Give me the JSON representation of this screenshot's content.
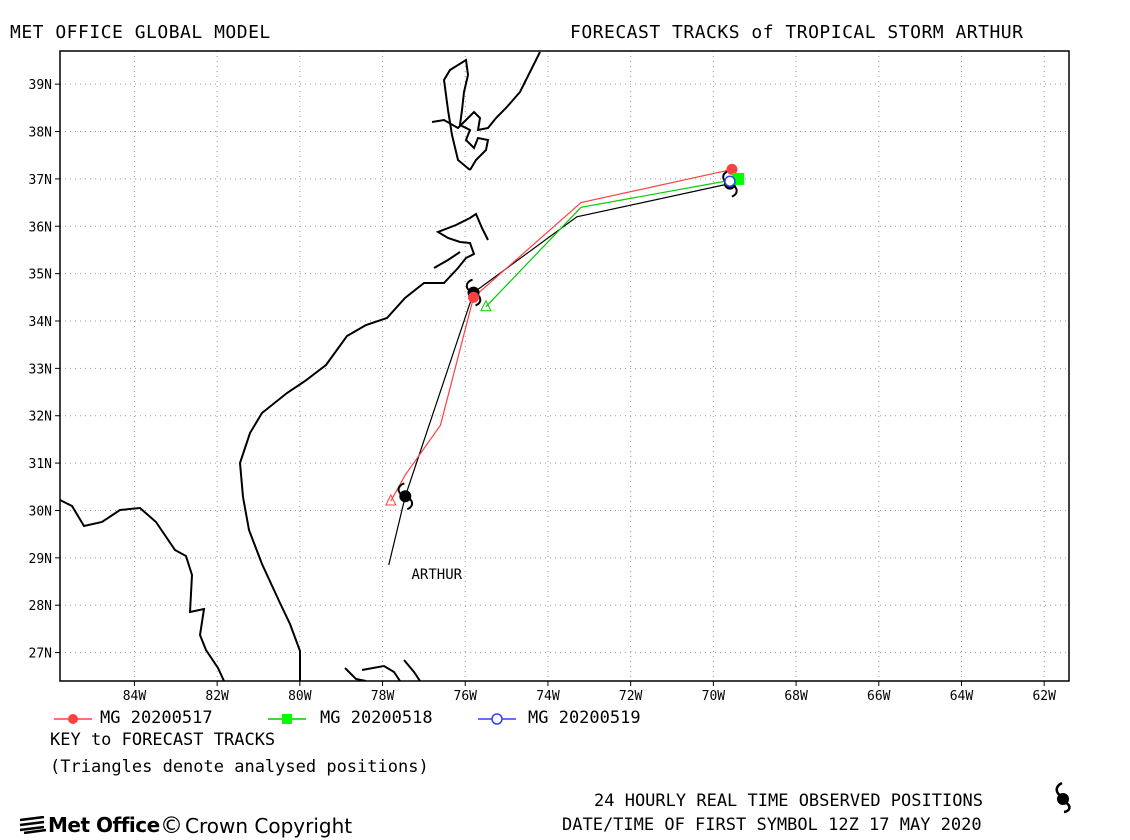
{
  "header": {
    "left_title": "MET OFFICE GLOBAL MODEL",
    "right_title": "FORECAST TRACKS of TROPICAL STORM ARTHUR"
  },
  "map": {
    "lon_range": [
      -85.8,
      -61.4
    ],
    "lat_range": [
      26.4,
      39.7
    ],
    "x_ticks": [
      {
        "lon": -84,
        "label": "84W"
      },
      {
        "lon": -82,
        "label": "82W"
      },
      {
        "lon": -80,
        "label": "80W"
      },
      {
        "lon": -78,
        "label": "78W"
      },
      {
        "lon": -76,
        "label": "76W"
      },
      {
        "lon": -74,
        "label": "74W"
      },
      {
        "lon": -72,
        "label": "72W"
      },
      {
        "lon": -70,
        "label": "70W"
      },
      {
        "lon": -68,
        "label": "68W"
      },
      {
        "lon": -66,
        "label": "66W"
      },
      {
        "lon": -64,
        "label": "64W"
      },
      {
        "lon": -62,
        "label": "62W"
      }
    ],
    "y_ticks": [
      {
        "lat": 39,
        "label": "39N"
      },
      {
        "lat": 38,
        "label": "38N"
      },
      {
        "lat": 37,
        "label": "37N"
      },
      {
        "lat": 36,
        "label": "36N"
      },
      {
        "lat": 35,
        "label": "35N"
      },
      {
        "lat": 34,
        "label": "34N"
      },
      {
        "lat": 33,
        "label": "33N"
      },
      {
        "lat": 32,
        "label": "32N"
      },
      {
        "lat": 31,
        "label": "31N"
      },
      {
        "lat": 30,
        "label": "30N"
      },
      {
        "lat": 29,
        "label": "29N"
      },
      {
        "lat": 28,
        "label": "28N"
      },
      {
        "lat": 27,
        "label": "27N"
      }
    ],
    "grid": "dotted",
    "storm_label": "ARTHUR",
    "storm_label_pos": [
      -77.3,
      28.55
    ],
    "colors": {
      "red": "#ff4040",
      "green": "#00cc00",
      "blue": "#3040ff",
      "observed": "#000000"
    },
    "tracks": [
      {
        "name": "MG 20200517",
        "color": "#ff4040",
        "marker": "filled-circle",
        "points": [
          [
            -77.8,
            30.2
          ],
          [
            -77.45,
            30.75
          ],
          [
            -76.6,
            31.8
          ],
          [
            -75.8,
            34.5
          ],
          [
            -73.2,
            36.5
          ],
          [
            -69.55,
            37.2
          ]
        ],
        "analysed_triangle": [
          -77.8,
          30.2
        ],
        "end_marker": [
          -69.55,
          37.2
        ],
        "mid_marker": [
          -75.8,
          34.5
        ]
      },
      {
        "name": "MG 20200518",
        "color": "#00cc00",
        "marker": "filled-square",
        "points": [
          [
            -75.5,
            34.3
          ],
          [
            -73.2,
            36.4
          ],
          [
            -69.4,
            37.0
          ]
        ],
        "analysed_triangle": [
          -75.5,
          34.3
        ],
        "end_marker": [
          -69.4,
          37.0
        ]
      },
      {
        "name": "MG 20200519",
        "color": "#3040ff",
        "marker": "open-circle",
        "points": [
          [
            -69.6,
            36.95
          ]
        ],
        "analysed_triangle": null,
        "end_marker": null
      }
    ],
    "observed": {
      "points": [
        [
          -77.85,
          28.85
        ],
        [
          -77.45,
          30.3
        ],
        [
          -75.8,
          34.6
        ],
        [
          -73.3,
          36.2
        ],
        [
          -69.6,
          36.9
        ]
      ],
      "storm_symbols": [
        [
          -77.45,
          30.3
        ],
        [
          -75.8,
          34.6
        ],
        [
          -69.6,
          36.9
        ]
      ]
    }
  },
  "legend": {
    "items": [
      {
        "label": "MG 20200517",
        "color": "#ff4040",
        "marker": "filled-circle"
      },
      {
        "label": "MG 20200518",
        "color": "#00cc00",
        "marker": "filled-square"
      },
      {
        "label": "MG 20200519",
        "color": "#3040ff",
        "marker": "open-circle"
      }
    ],
    "key_title": "KEY to FORECAST TRACKS",
    "triangle_note": "(Triangles denote analysed positions)"
  },
  "footer": {
    "observed_note": "24 HOURLY REAL TIME OBSERVED POSITIONS",
    "first_symbol": "DATE/TIME OF FIRST SYMBOL 12Z 17 MAY 2020",
    "brand": "Met Office",
    "copyright_symbol": "©",
    "copyright": "Crown Copyright"
  }
}
